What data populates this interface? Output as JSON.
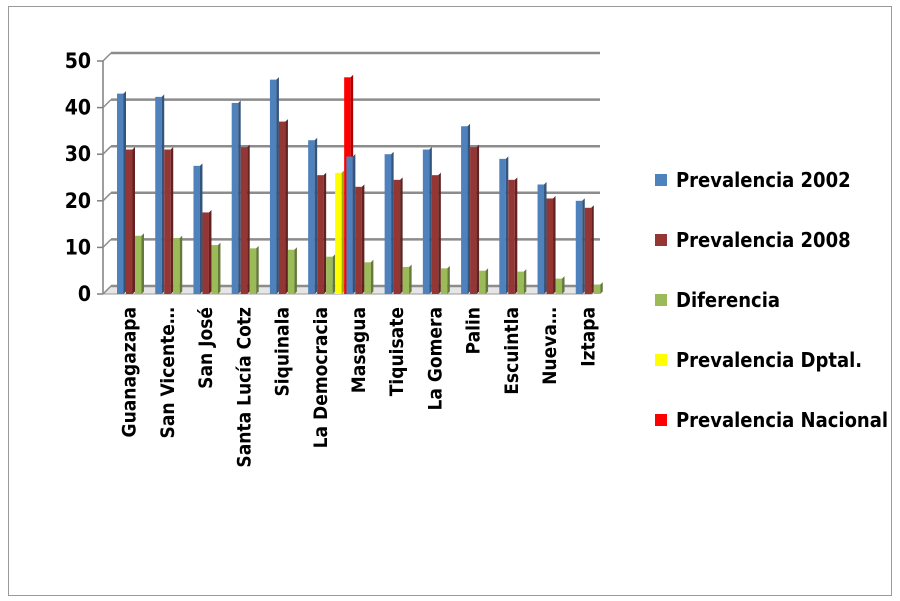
{
  "chart_data": {
    "type": "bar",
    "title": "",
    "xlabel": "",
    "ylabel": "",
    "ylim": [
      0,
      50
    ],
    "yticks": [
      0,
      10,
      20,
      30,
      40,
      50
    ],
    "grid": true,
    "legend_position": "right",
    "categories": [
      "Guanagazapa",
      "San Vicente…",
      "San José",
      "Santa Lucía Cotz",
      "Siquinala",
      "La Democracia",
      "Masagua",
      "Tiquisate",
      "La Gomera",
      "Palin",
      "Escuintla",
      "Nueva…",
      "Iztapa"
    ],
    "series": [
      {
        "name": "Prevalencia 2002",
        "color": "#4f81bd",
        "values": [
          43,
          42.3,
          27.5,
          41,
          46,
          33,
          29.5,
          30,
          31,
          36,
          29,
          23.5,
          20
        ]
      },
      {
        "name": "Prevalencia 2008",
        "color": "#943634",
        "values": [
          31,
          31,
          17.5,
          31.5,
          37,
          25.5,
          23,
          24.5,
          25.5,
          31.5,
          24.5,
          20.5,
          18.5
        ]
      },
      {
        "name": "Diferencia",
        "color": "#9bbb59",
        "values": [
          12.5,
          12,
          10.5,
          9.8,
          9.5,
          8,
          6.8,
          5.8,
          5.5,
          5,
          4.8,
          3.3,
          2
        ]
      },
      {
        "name": "Prevalencia Dptal.",
        "color": "#ffff00",
        "values": [
          null,
          null,
          null,
          null,
          null,
          26,
          null,
          null,
          null,
          null,
          null,
          null,
          null
        ]
      },
      {
        "name": "Prevalencia Nacional",
        "color": "#ff0000",
        "values": [
          null,
          null,
          null,
          null,
          null,
          46.5,
          null,
          null,
          null,
          null,
          null,
          null,
          null
        ]
      }
    ]
  }
}
